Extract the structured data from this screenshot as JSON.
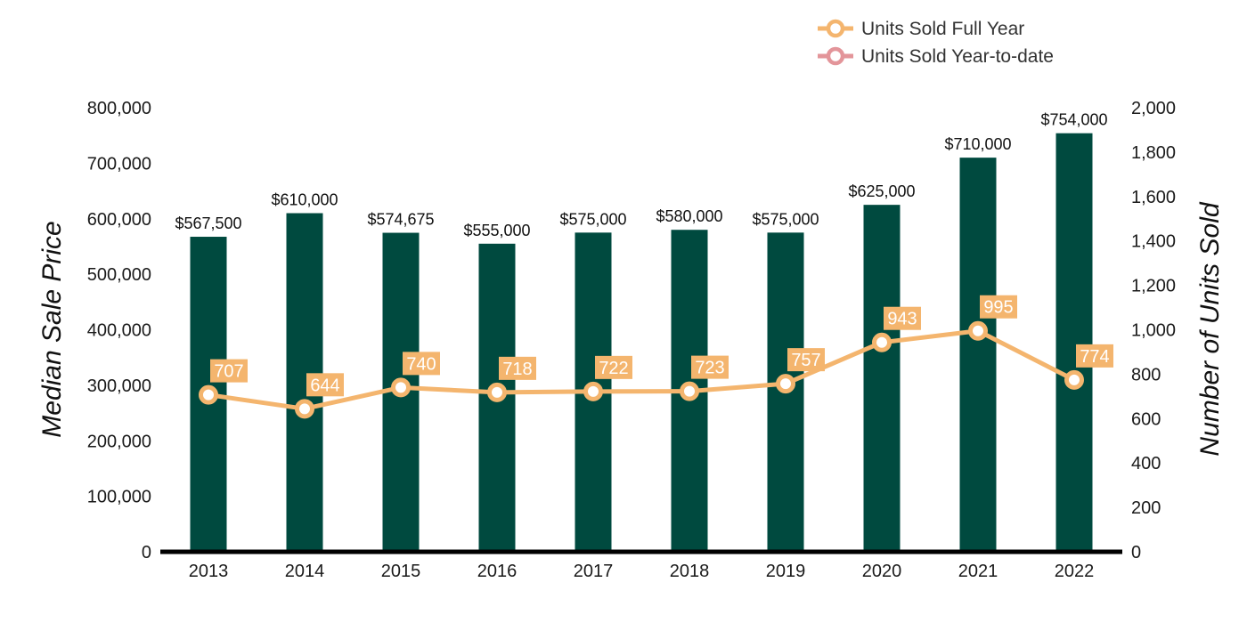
{
  "chart_data": {
    "type": "bar",
    "categories": [
      "2013",
      "2014",
      "2015",
      "2016",
      "2017",
      "2018",
      "2019",
      "2020",
      "2021",
      "2022"
    ],
    "series": [
      {
        "name": "Median Sale Price",
        "type": "bar",
        "axis": "left",
        "values": [
          567500,
          610000,
          574675,
          555000,
          575000,
          580000,
          575000,
          625000,
          710000,
          754000
        ],
        "labels": [
          "$567,500",
          "$610,000",
          "$574,675",
          "$555,000",
          "$575,000",
          "$580,000",
          "$575,000",
          "$625,000",
          "$710,000",
          "$754,000"
        ],
        "color": "#004a3f"
      },
      {
        "name": "Units Sold Full Year",
        "type": "line",
        "axis": "right",
        "values": [
          707,
          644,
          740,
          718,
          722,
          723,
          757,
          943,
          995,
          774
        ],
        "labels": [
          "707",
          "644",
          "740",
          "718",
          "722",
          "723",
          "757",
          "943",
          "995",
          "774"
        ],
        "color": "#f4b56e"
      }
    ],
    "legend": [
      {
        "name": "Units Sold Full Year",
        "color": "#f4b56e"
      },
      {
        "name": "Units Sold Year-to-date",
        "color": "#e3959a"
      }
    ],
    "ylabel": "Median Sale Price",
    "y2label": "Number of Units Sold",
    "ylim": [
      0,
      800000
    ],
    "y2lim": [
      0,
      2000
    ],
    "yticks": [
      "0",
      "100,000",
      "200,000",
      "300,000",
      "400,000",
      "500,000",
      "600,000",
      "700,000",
      "800,000"
    ],
    "y2ticks": [
      "0",
      "200",
      "400",
      "600",
      "800",
      "1,000",
      "1,200",
      "1,400",
      "1,600",
      "1,800",
      "2,000"
    ],
    "legend_position": "top-right"
  }
}
